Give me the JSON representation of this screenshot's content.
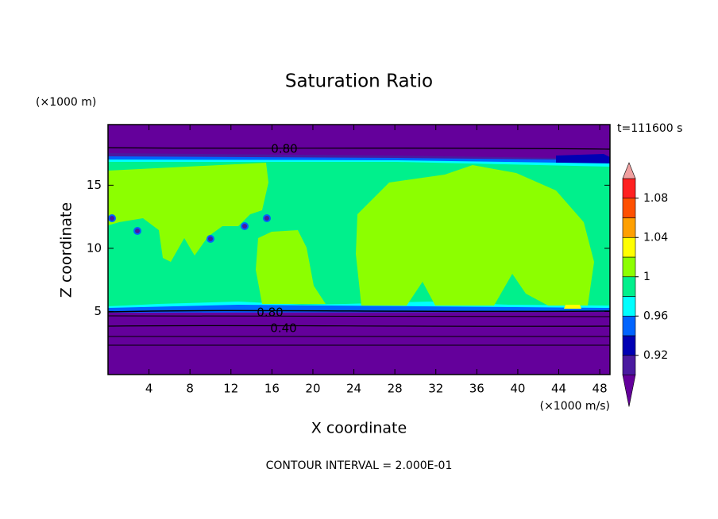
{
  "chart_data": {
    "type": "contour",
    "title": "Saturation Ratio",
    "y_unit_label": "(×1000 m)",
    "x_unit_label": "(×1000 m/s)",
    "xlabel": "X coordinate",
    "ylabel": "Z coordinate",
    "time_label": "t=111600 s",
    "footer": "CONTOUR INTERVAL = 2.000E-01",
    "xlim": [
      0,
      49
    ],
    "ylim": [
      0,
      19.8
    ],
    "xticks": [
      4,
      8,
      12,
      16,
      20,
      24,
      28,
      32,
      36,
      40,
      44,
      48
    ],
    "yticks": [
      5,
      10,
      15
    ],
    "colorbar": {
      "levels": [
        0.9,
        0.92,
        0.94,
        0.96,
        0.98,
        1,
        1.02,
        1.04,
        1.06,
        1.08,
        1.1
      ],
      "colors": [
        "#4a1aa0",
        "#0000b4",
        "#0064ff",
        "#00ffff",
        "#00f08c",
        "#8cff00",
        "#ffff00",
        "#ffa000",
        "#ff5000",
        "#ff2020"
      ],
      "under_color": "#64009b",
      "over_color": "#f0a0a0",
      "ticks": [
        0.92,
        0.96,
        1,
        1.04,
        1.08
      ]
    },
    "contour_lines": [
      {
        "value": 0.8,
        "label": "0.80"
      },
      {
        "value": 0.8,
        "label": "0.80"
      },
      {
        "value": 0.4,
        "label": "0.40"
      }
    ]
  }
}
